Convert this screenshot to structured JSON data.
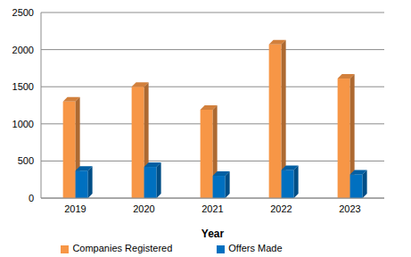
{
  "chart_data": {
    "type": "bar",
    "x_label": "Year",
    "categories": [
      "2019",
      "2020",
      "2021",
      "2022",
      "2023"
    ],
    "series": [
      {
        "name": "Companies Registered",
        "color": "#f79646",
        "values": [
          1300,
          1500,
          1190,
          2070,
          1610
        ]
      },
      {
        "name": "Offers Made",
        "color": "#0070c0",
        "values": [
          370,
          420,
          300,
          380,
          320
        ]
      }
    ],
    "ylim": [
      0,
      2500
    ],
    "yticks": [
      0,
      500,
      1000,
      1500,
      2000,
      2500
    ],
    "grid": true,
    "legend": "bottom"
  }
}
